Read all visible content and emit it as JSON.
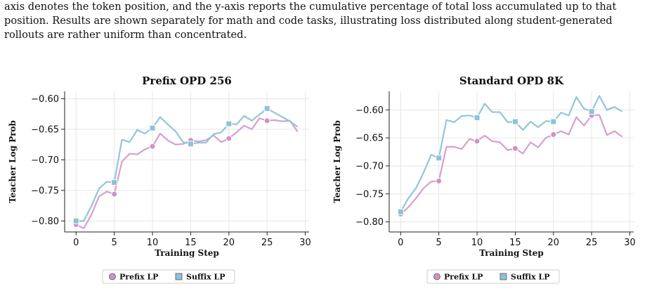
{
  "caption": {
    "lines": [
      "axis denotes the token position, and the y-axis reports the cumulative percentage of total loss accumulated up to that",
      "position. Results are shown separately for math and code tasks, illustrating loss distributed along student-generated",
      "rollouts are rather uniform than concentrated."
    ]
  },
  "colors": {
    "prefix": "#d7a0cf",
    "suffix": "#92c6da",
    "prefix_marker": "#cf93c6",
    "suffix_marker": "#8dc2d8"
  },
  "chart_data": [
    {
      "type": "line",
      "title": "Prefix OPD 256",
      "xlabel": "Training Step",
      "ylabel": "Teacher Log Prob",
      "xlim": [
        -1.5,
        30.5
      ],
      "ylim": [
        -0.818,
        -0.588
      ],
      "xticks": [
        0,
        5,
        10,
        15,
        20,
        25,
        30
      ],
      "yticks": [
        -0.8,
        -0.75,
        -0.7,
        -0.65,
        -0.6
      ],
      "legend": "bottom-center",
      "grid": true,
      "x": [
        0,
        1,
        2,
        3,
        4,
        5,
        6,
        7,
        8,
        9,
        10,
        11,
        12,
        13,
        14,
        15,
        16,
        17,
        18,
        19,
        20,
        21,
        22,
        23,
        24,
        25,
        26,
        27,
        28,
        29
      ],
      "series": [
        {
          "name": "Prefix LP",
          "values": [
            -0.806,
            -0.812,
            -0.79,
            -0.76,
            -0.752,
            -0.756,
            -0.703,
            -0.69,
            -0.691,
            -0.683,
            -0.678,
            -0.657,
            -0.668,
            -0.675,
            -0.674,
            -0.668,
            -0.67,
            -0.668,
            -0.66,
            -0.671,
            -0.665,
            -0.655,
            -0.644,
            -0.65,
            -0.632,
            -0.636,
            -0.635,
            -0.637,
            -0.636,
            -0.654
          ],
          "markers": [
            0,
            5,
            10,
            15,
            20,
            25
          ]
        },
        {
          "name": "Suffix LP",
          "values": [
            -0.8,
            -0.8,
            -0.776,
            -0.747,
            -0.736,
            -0.737,
            -0.667,
            -0.671,
            -0.651,
            -0.657,
            -0.648,
            -0.63,
            -0.642,
            -0.653,
            -0.671,
            -0.674,
            -0.672,
            -0.672,
            -0.658,
            -0.655,
            -0.641,
            -0.642,
            -0.628,
            -0.636,
            -0.626,
            -0.616,
            -0.623,
            -0.63,
            -0.637,
            -0.646
          ],
          "markers": [
            0,
            5,
            10,
            15,
            20,
            25
          ]
        }
      ]
    },
    {
      "type": "line",
      "title": "Standard OPD 8K",
      "xlabel": "Training Step",
      "ylabel": "Teacher Log Prob",
      "xlim": [
        -1.5,
        30.5
      ],
      "ylim": [
        -0.818,
        -0.567
      ],
      "xticks": [
        0,
        5,
        10,
        15,
        20,
        25,
        30
      ],
      "yticks": [
        -0.8,
        -0.75,
        -0.7,
        -0.65,
        -0.6
      ],
      "legend": "bottom-center",
      "grid": true,
      "x": [
        0,
        1,
        2,
        3,
        4,
        5,
        6,
        7,
        8,
        9,
        10,
        11,
        12,
        13,
        14,
        15,
        16,
        17,
        18,
        19,
        20,
        21,
        22,
        23,
        24,
        25,
        26,
        27,
        28,
        29
      ],
      "series": [
        {
          "name": "Prefix LP",
          "values": [
            -0.786,
            -0.774,
            -0.758,
            -0.74,
            -0.728,
            -0.727,
            -0.666,
            -0.666,
            -0.67,
            -0.652,
            -0.656,
            -0.646,
            -0.656,
            -0.658,
            -0.672,
            -0.669,
            -0.678,
            -0.658,
            -0.667,
            -0.65,
            -0.644,
            -0.638,
            -0.644,
            -0.613,
            -0.628,
            -0.61,
            -0.609,
            -0.645,
            -0.638,
            -0.648
          ],
          "markers": [
            0,
            5,
            10,
            15,
            20,
            25
          ]
        },
        {
          "name": "Suffix LP",
          "values": [
            -0.782,
            -0.758,
            -0.74,
            -0.712,
            -0.68,
            -0.686,
            -0.618,
            -0.622,
            -0.611,
            -0.61,
            -0.614,
            -0.589,
            -0.604,
            -0.604,
            -0.622,
            -0.621,
            -0.636,
            -0.621,
            -0.631,
            -0.62,
            -0.621,
            -0.605,
            -0.61,
            -0.577,
            -0.598,
            -0.603,
            -0.575,
            -0.6,
            -0.595,
            -0.603
          ],
          "markers": [
            0,
            5,
            10,
            15,
            20,
            25
          ]
        }
      ]
    }
  ]
}
